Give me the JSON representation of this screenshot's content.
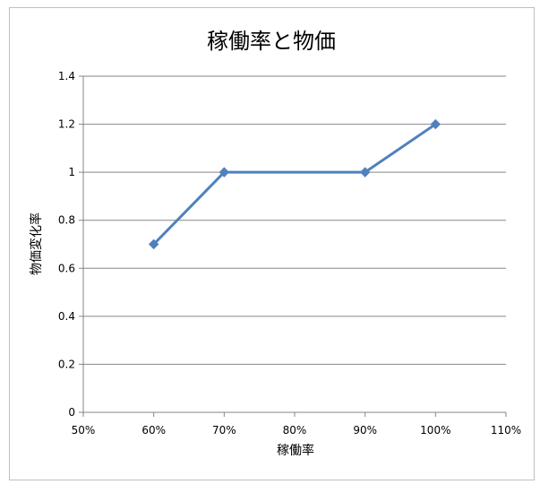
{
  "chart_data": {
    "type": "line",
    "title": "稼働率と物価",
    "xlabel": "稼働率",
    "ylabel": "物価変化率",
    "xlim": [
      50,
      110
    ],
    "ylim": [
      0,
      1.4
    ],
    "x_ticks": [
      "50%",
      "60%",
      "70%",
      "80%",
      "90%",
      "100%",
      "110%"
    ],
    "y_ticks": [
      "0",
      "0.2",
      "0.4",
      "0.6",
      "0.8",
      "1",
      "1.2",
      "1.4"
    ],
    "grid": true,
    "legend": "none",
    "series": [
      {
        "x": [
          60,
          70,
          90,
          100
        ],
        "y": [
          0.7,
          1.0,
          1.0,
          1.2
        ],
        "color": "#4f81bd",
        "marker": "diamond"
      }
    ]
  }
}
